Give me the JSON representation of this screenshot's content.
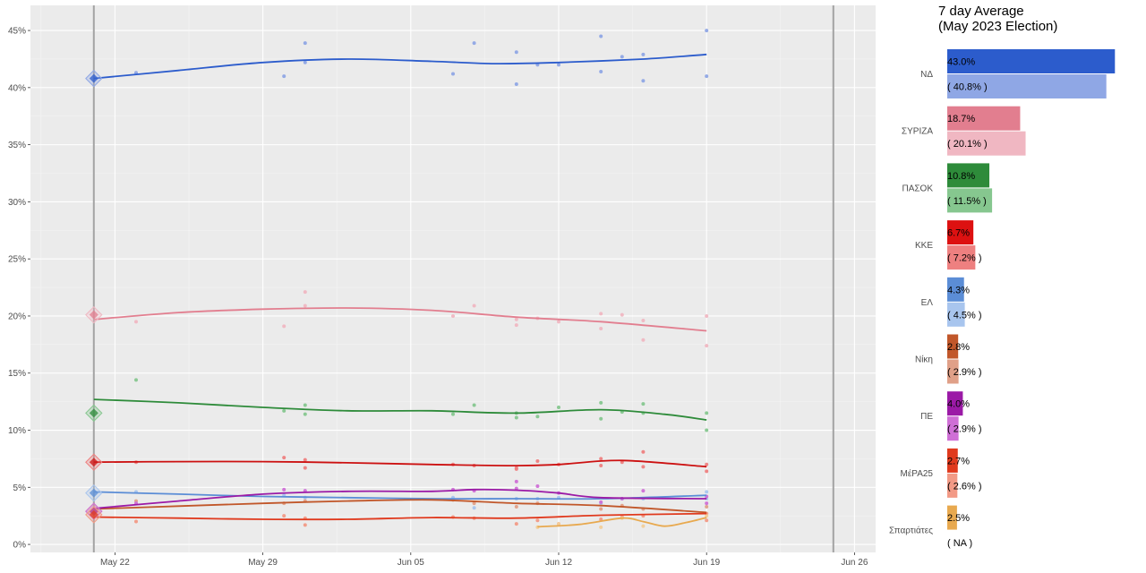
{
  "side_title": {
    "line1": "7 day Average",
    "line2": "(May 2023 Election)"
  },
  "chart_data": [
    {
      "type": "line",
      "x_tick_labels": [
        "May 22",
        "May 29",
        "Jun 05",
        "Jun 12",
        "Jun 19",
        "Jun 26"
      ],
      "x_ticks": [
        "2023-05-22",
        "2023-05-29",
        "2023-06-05",
        "2023-06-12",
        "2023-06-19",
        "2023-06-26"
      ],
      "xlim": [
        "2023-05-18",
        "2023-06-27"
      ],
      "y_tick_labels": [
        "0%",
        "5%",
        "10%",
        "15%",
        "20%",
        "25%",
        "30%",
        "35%",
        "40%",
        "45%"
      ],
      "ylim": [
        -0.7,
        47.2
      ],
      "vlines": [
        "2023-05-21",
        "2023-06-25"
      ],
      "grid": true,
      "election_date": "2023-05-21",
      "series": [
        {
          "name": "ΝΔ",
          "color": "#2c5ccc",
          "light": "#8fa7e5",
          "election": 40.8,
          "smooth": [
            [
              "2023-05-21",
              40.8
            ],
            [
              "2023-05-25",
              41.5
            ],
            [
              "2023-05-29",
              42.2
            ],
            [
              "2023-06-02",
              42.5
            ],
            [
              "2023-06-06",
              42.3
            ],
            [
              "2023-06-09",
              42.1
            ],
            [
              "2023-06-12",
              42.2
            ],
            [
              "2023-06-16",
              42.5
            ],
            [
              "2023-06-19",
              42.9
            ]
          ],
          "points": [
            [
              "2023-05-23",
              41.3
            ],
            [
              "2023-05-30",
              41.0
            ],
            [
              "2023-05-31",
              42.2
            ],
            [
              "2023-05-31",
              43.9
            ],
            [
              "2023-06-07",
              41.2
            ],
            [
              "2023-06-08",
              43.9
            ],
            [
              "2023-06-10",
              43.1
            ],
            [
              "2023-06-10",
              40.3
            ],
            [
              "2023-06-11",
              42.0
            ],
            [
              "2023-06-12",
              42.0
            ],
            [
              "2023-06-14",
              44.5
            ],
            [
              "2023-06-14",
              41.4
            ],
            [
              "2023-06-15",
              42.7
            ],
            [
              "2023-06-16",
              42.9
            ],
            [
              "2023-06-16",
              40.6
            ],
            [
              "2023-06-19",
              45.0
            ],
            [
              "2023-06-19",
              41.0
            ]
          ]
        },
        {
          "name": "ΣΥΡΙΖΑ",
          "color": "#e27e8f",
          "light": "#f0b7c2",
          "election": 20.1,
          "smooth": [
            [
              "2023-05-21",
              19.7
            ],
            [
              "2023-05-25",
              20.3
            ],
            [
              "2023-05-29",
              20.6
            ],
            [
              "2023-06-02",
              20.7
            ],
            [
              "2023-06-06",
              20.5
            ],
            [
              "2023-06-10",
              19.9
            ],
            [
              "2023-06-14",
              19.5
            ],
            [
              "2023-06-19",
              18.7
            ]
          ],
          "points": [
            [
              "2023-05-23",
              19.5
            ],
            [
              "2023-05-30",
              19.1
            ],
            [
              "2023-05-31",
              20.9
            ],
            [
              "2023-05-31",
              22.1
            ],
            [
              "2023-06-07",
              20.0
            ],
            [
              "2023-06-08",
              20.9
            ],
            [
              "2023-06-10",
              19.7
            ],
            [
              "2023-06-10",
              19.2
            ],
            [
              "2023-06-11",
              19.8
            ],
            [
              "2023-06-12",
              19.5
            ],
            [
              "2023-06-14",
              20.2
            ],
            [
              "2023-06-14",
              18.9
            ],
            [
              "2023-06-15",
              20.1
            ],
            [
              "2023-06-16",
              19.6
            ],
            [
              "2023-06-16",
              17.9
            ],
            [
              "2023-06-19",
              20.0
            ],
            [
              "2023-06-19",
              17.4
            ]
          ]
        },
        {
          "name": "ΠΑΣΟΚ",
          "color": "#2e8b3a",
          "light": "#86c78f",
          "election": 11.5,
          "smooth": [
            [
              "2023-05-21",
              12.7
            ],
            [
              "2023-05-25",
              12.4
            ],
            [
              "2023-05-29",
              12.0
            ],
            [
              "2023-06-02",
              11.7
            ],
            [
              "2023-06-06",
              11.7
            ],
            [
              "2023-06-10",
              11.5
            ],
            [
              "2023-06-14",
              11.8
            ],
            [
              "2023-06-17",
              11.4
            ],
            [
              "2023-06-19",
              10.9
            ]
          ],
          "points": [
            [
              "2023-05-23",
              14.4
            ],
            [
              "2023-05-30",
              11.7
            ],
            [
              "2023-05-31",
              11.4
            ],
            [
              "2023-05-31",
              12.2
            ],
            [
              "2023-06-07",
              11.4
            ],
            [
              "2023-06-08",
              12.2
            ],
            [
              "2023-06-10",
              11.5
            ],
            [
              "2023-06-10",
              11.1
            ],
            [
              "2023-06-11",
              11.2
            ],
            [
              "2023-06-12",
              12.0
            ],
            [
              "2023-06-14",
              12.4
            ],
            [
              "2023-06-14",
              11.0
            ],
            [
              "2023-06-15",
              11.6
            ],
            [
              "2023-06-16",
              12.3
            ],
            [
              "2023-06-16",
              11.5
            ],
            [
              "2023-06-19",
              11.5
            ],
            [
              "2023-06-19",
              10.0
            ]
          ]
        },
        {
          "name": "ΚΚΕ",
          "color": "#cc1111",
          "light": "#ee8080",
          "election": 7.2,
          "smooth": [
            [
              "2023-05-21",
              7.2
            ],
            [
              "2023-05-25",
              7.25
            ],
            [
              "2023-05-29",
              7.25
            ],
            [
              "2023-06-02",
              7.15
            ],
            [
              "2023-06-06",
              7.0
            ],
            [
              "2023-06-10",
              6.9
            ],
            [
              "2023-06-12",
              7.0
            ],
            [
              "2023-06-15",
              7.35
            ],
            [
              "2023-06-19",
              6.8
            ]
          ],
          "points": [
            [
              "2023-05-23",
              7.2
            ],
            [
              "2023-05-30",
              7.6
            ],
            [
              "2023-05-31",
              6.7
            ],
            [
              "2023-05-31",
              7.4
            ],
            [
              "2023-06-07",
              7.0
            ],
            [
              "2023-06-08",
              6.9
            ],
            [
              "2023-06-10",
              6.7
            ],
            [
              "2023-06-10",
              6.6
            ],
            [
              "2023-06-11",
              7.3
            ],
            [
              "2023-06-12",
              7.0
            ],
            [
              "2023-06-14",
              7.5
            ],
            [
              "2023-06-14",
              6.9
            ],
            [
              "2023-06-15",
              7.2
            ],
            [
              "2023-06-16",
              8.1
            ],
            [
              "2023-06-16",
              6.8
            ],
            [
              "2023-06-19",
              7.0
            ],
            [
              "2023-06-19",
              6.4
            ]
          ]
        },
        {
          "name": "ΕΛ",
          "color": "#5b8dd6",
          "light": "#a8c5ee",
          "election": 4.5,
          "smooth": [
            [
              "2023-05-21",
              4.6
            ],
            [
              "2023-05-25",
              4.4
            ],
            [
              "2023-05-29",
              4.2
            ],
            [
              "2023-06-02",
              4.1
            ],
            [
              "2023-06-06",
              4.0
            ],
            [
              "2023-06-10",
              4.0
            ],
            [
              "2023-06-14",
              4.0
            ],
            [
              "2023-06-19",
              4.3
            ]
          ],
          "points": [
            [
              "2023-05-23",
              4.6
            ],
            [
              "2023-05-30",
              4.3
            ],
            [
              "2023-05-31",
              4.1
            ],
            [
              "2023-06-07",
              4.1
            ],
            [
              "2023-06-08",
              3.2
            ],
            [
              "2023-06-10",
              4.0
            ],
            [
              "2023-06-11",
              4.0
            ],
            [
              "2023-06-12",
              4.1
            ],
            [
              "2023-06-14",
              3.6
            ],
            [
              "2023-06-15",
              4.0
            ],
            [
              "2023-06-16",
              4.0
            ],
            [
              "2023-06-19",
              4.6
            ],
            [
              "2023-06-19",
              4.0
            ]
          ]
        },
        {
          "name": "Νίκη",
          "color": "#c1572a",
          "light": "#e0a088",
          "election": 2.9,
          "smooth": [
            [
              "2023-05-21",
              3.1
            ],
            [
              "2023-05-25",
              3.35
            ],
            [
              "2023-05-29",
              3.6
            ],
            [
              "2023-06-02",
              3.8
            ],
            [
              "2023-06-06",
              3.9
            ],
            [
              "2023-06-10",
              3.6
            ],
            [
              "2023-06-14",
              3.4
            ],
            [
              "2023-06-19",
              2.8
            ]
          ],
          "points": [
            [
              "2023-05-23",
              3.8
            ],
            [
              "2023-05-30",
              3.6
            ],
            [
              "2023-05-31",
              3.8
            ],
            [
              "2023-06-07",
              3.9
            ],
            [
              "2023-06-08",
              3.6
            ],
            [
              "2023-06-10",
              3.3
            ],
            [
              "2023-06-11",
              3.6
            ],
            [
              "2023-06-14",
              3.1
            ],
            [
              "2023-06-15",
              3.4
            ],
            [
              "2023-06-16",
              3.1
            ],
            [
              "2023-06-19",
              3.3
            ]
          ]
        },
        {
          "name": "ΠΕ",
          "color": "#9b1aa6",
          "light": "#cf6fd6",
          "election": 2.9,
          "smooth": [
            [
              "2023-05-21",
              3.15
            ],
            [
              "2023-05-25",
              3.8
            ],
            [
              "2023-05-29",
              4.4
            ],
            [
              "2023-06-02",
              4.65
            ],
            [
              "2023-06-06",
              4.65
            ],
            [
              "2023-06-08",
              4.8
            ],
            [
              "2023-06-10",
              4.75
            ],
            [
              "2023-06-12",
              4.5
            ],
            [
              "2023-06-14",
              4.1
            ],
            [
              "2023-06-19",
              4.0
            ]
          ],
          "points": [
            [
              "2023-05-23",
              3.6
            ],
            [
              "2023-05-30",
              4.8
            ],
            [
              "2023-05-31",
              4.7
            ],
            [
              "2023-06-07",
              4.8
            ],
            [
              "2023-06-08",
              4.7
            ],
            [
              "2023-06-10",
              5.5
            ],
            [
              "2023-06-10",
              4.9
            ],
            [
              "2023-06-11",
              5.1
            ],
            [
              "2023-06-12",
              4.5
            ],
            [
              "2023-06-14",
              3.7
            ],
            [
              "2023-06-15",
              4.0
            ],
            [
              "2023-06-16",
              4.7
            ],
            [
              "2023-06-19",
              4.2
            ],
            [
              "2023-06-19",
              3.6
            ]
          ]
        },
        {
          "name": "ΜέΡΑ25",
          "color": "#e03a1e",
          "light": "#f29a86",
          "election": 2.6,
          "smooth": [
            [
              "2023-05-21",
              2.4
            ],
            [
              "2023-05-25",
              2.3
            ],
            [
              "2023-05-29",
              2.2
            ],
            [
              "2023-06-02",
              2.2
            ],
            [
              "2023-06-06",
              2.35
            ],
            [
              "2023-06-10",
              2.3
            ],
            [
              "2023-06-14",
              2.55
            ],
            [
              "2023-06-19",
              2.7
            ]
          ],
          "points": [
            [
              "2023-05-23",
              2.0
            ],
            [
              "2023-05-30",
              2.5
            ],
            [
              "2023-05-31",
              2.3
            ],
            [
              "2023-05-31",
              1.7
            ],
            [
              "2023-06-07",
              2.4
            ],
            [
              "2023-06-08",
              2.3
            ],
            [
              "2023-06-10",
              1.8
            ],
            [
              "2023-06-11",
              2.1
            ],
            [
              "2023-06-12",
              1.8
            ],
            [
              "2023-06-14",
              2.2
            ],
            [
              "2023-06-15",
              2.4
            ],
            [
              "2023-06-16",
              2.5
            ],
            [
              "2023-06-19",
              2.7
            ],
            [
              "2023-06-19",
              2.1
            ]
          ]
        },
        {
          "name": "Σπαρτιάτες",
          "color": "#e8a94f",
          "light": "#f2cf9a",
          "election": null,
          "smooth": [
            [
              "2023-06-11",
              1.55
            ],
            [
              "2023-06-13",
              1.75
            ],
            [
              "2023-06-15",
              2.3
            ],
            [
              "2023-06-16",
              2.0
            ],
            [
              "2023-06-17",
              1.6
            ],
            [
              "2023-06-18",
              1.9
            ],
            [
              "2023-06-19",
              2.35
            ]
          ],
          "points": [
            [
              "2023-06-11",
              1.5
            ],
            [
              "2023-06-12",
              1.8
            ],
            [
              "2023-06-14",
              1.5
            ],
            [
              "2023-06-15",
              2.3
            ],
            [
              "2023-06-16",
              1.6
            ],
            [
              "2023-06-19",
              2.5
            ]
          ]
        }
      ]
    },
    {
      "type": "bar",
      "orientation": "horizontal",
      "xlim": [
        0,
        45
      ],
      "categories": [
        "ΝΔ",
        "ΣΥΡΙΖΑ",
        "ΠΑΣΟΚ",
        "ΚΚΕ",
        "ΕΛ",
        "Νίκη",
        "ΠΕ",
        "ΜέΡΑ25",
        "Σπαρτιάτες"
      ],
      "series": [
        {
          "name": "7 day average",
          "values": [
            43.0,
            18.7,
            10.8,
            6.7,
            4.3,
            2.8,
            4.0,
            2.7,
            2.5
          ],
          "labels": [
            "43.0%",
            "18.7%",
            "10.8%",
            "6.7%",
            "4.3%",
            "2.8%",
            "4.0%",
            "2.7%",
            "2.5%"
          ]
        },
        {
          "name": "May 2023 Election",
          "values": [
            40.8,
            20.1,
            11.5,
            7.2,
            4.5,
            2.9,
            2.9,
            2.6,
            null
          ],
          "labels": [
            "( 40.8% )",
            "( 20.1% )",
            "( 11.5% )",
            "( 7.2% )",
            "( 4.5% )",
            "( 2.9% )",
            "( 2.9% )",
            "( 2.6% )",
            "( NA )"
          ]
        }
      ],
      "colors_dark": [
        "#2c5ccc",
        "#e27e8f",
        "#2e8b3a",
        "#dd1111",
        "#5b8dd6",
        "#c1572a",
        "#9b1aa6",
        "#e03a1e",
        "#e8a94f"
      ],
      "colors_light": [
        "#8fa7e5",
        "#f0b7c2",
        "#86c78f",
        "#ee8080",
        "#a8c5ee",
        "#e0a088",
        "#cf6fd6",
        "#f29a86",
        "#f2cf9a"
      ]
    }
  ]
}
